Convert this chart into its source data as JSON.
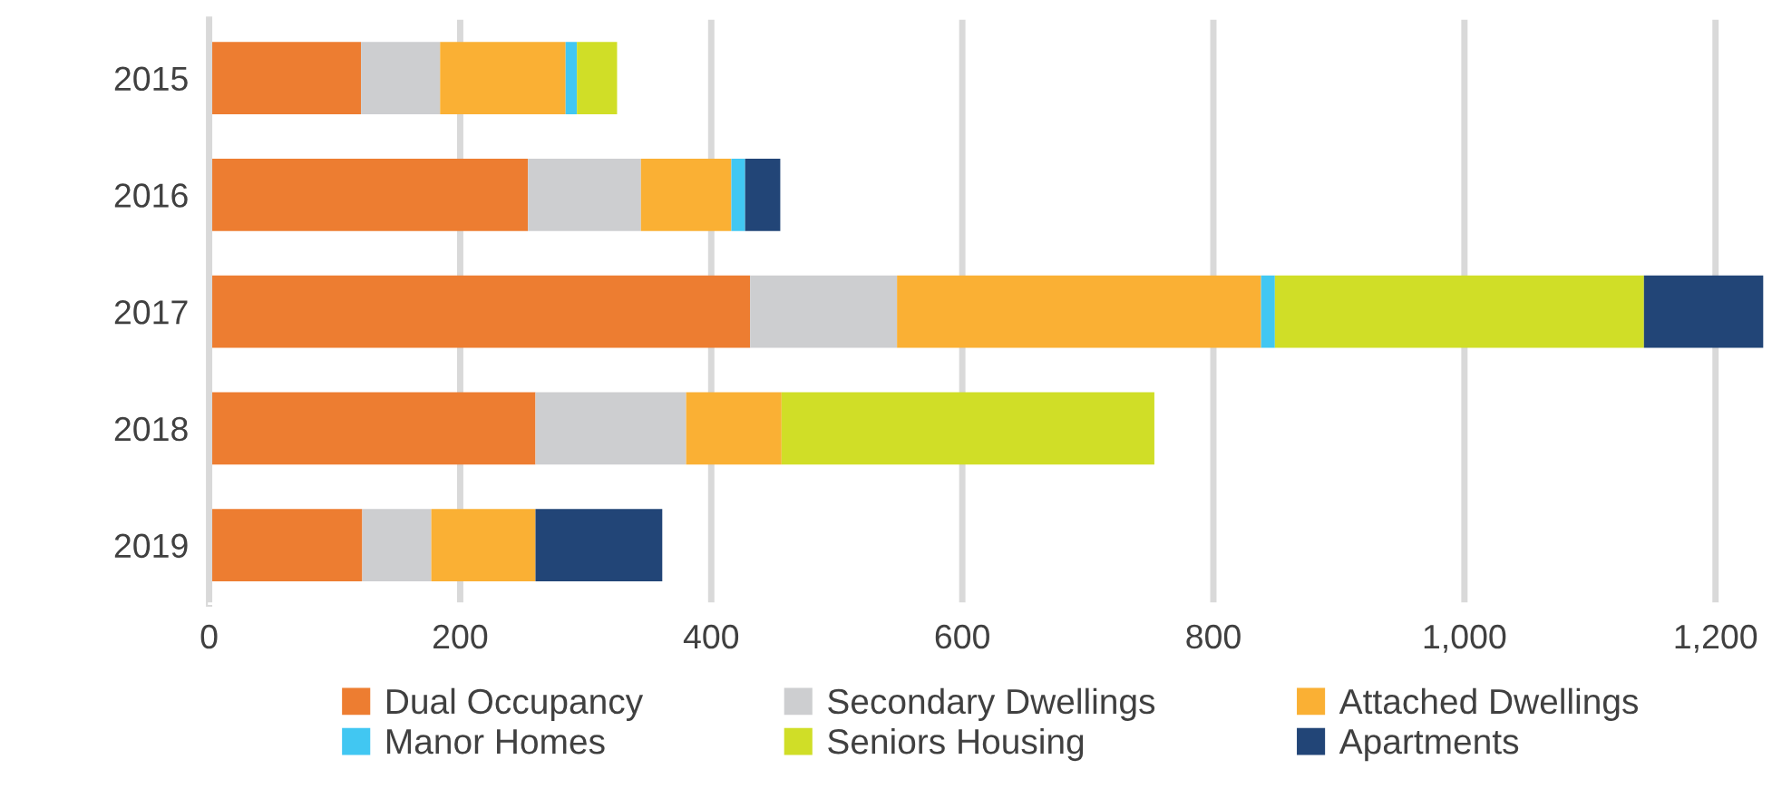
{
  "chart_data": {
    "type": "bar",
    "orientation": "horizontal",
    "stacked": true,
    "categories": [
      "2015",
      "2016",
      "2017",
      "2018",
      "2019"
    ],
    "series": [
      {
        "name": "Dual Occupancy",
        "color": "#ed7d31",
        "values": [
          121,
          254,
          431,
          260,
          122
        ]
      },
      {
        "name": "Secondary Dwellings",
        "color": "#cdced0",
        "values": [
          63,
          90,
          117,
          120,
          55
        ]
      },
      {
        "name": "Attached Dwellings",
        "color": "#fab034",
        "values": [
          100,
          72,
          290,
          76,
          83
        ]
      },
      {
        "name": "Manor Homes",
        "color": "#41c7f2",
        "values": [
          9,
          11,
          11,
          0,
          0
        ]
      },
      {
        "name": "Seniors Housing",
        "color": "#d0de27",
        "values": [
          32,
          0,
          294,
          297,
          0
        ]
      },
      {
        "name": "Apartments",
        "color": "#224577",
        "values": [
          0,
          28,
          95,
          0,
          101
        ]
      }
    ],
    "xlim": [
      0,
      1245
    ],
    "xticks": [
      0,
      200,
      400,
      600,
      800,
      {
        "value": 1000,
        "label": "1,000"
      },
      {
        "value": 1200,
        "label": "1,200"
      }
    ],
    "grid": "x",
    "legend": "bottom"
  }
}
